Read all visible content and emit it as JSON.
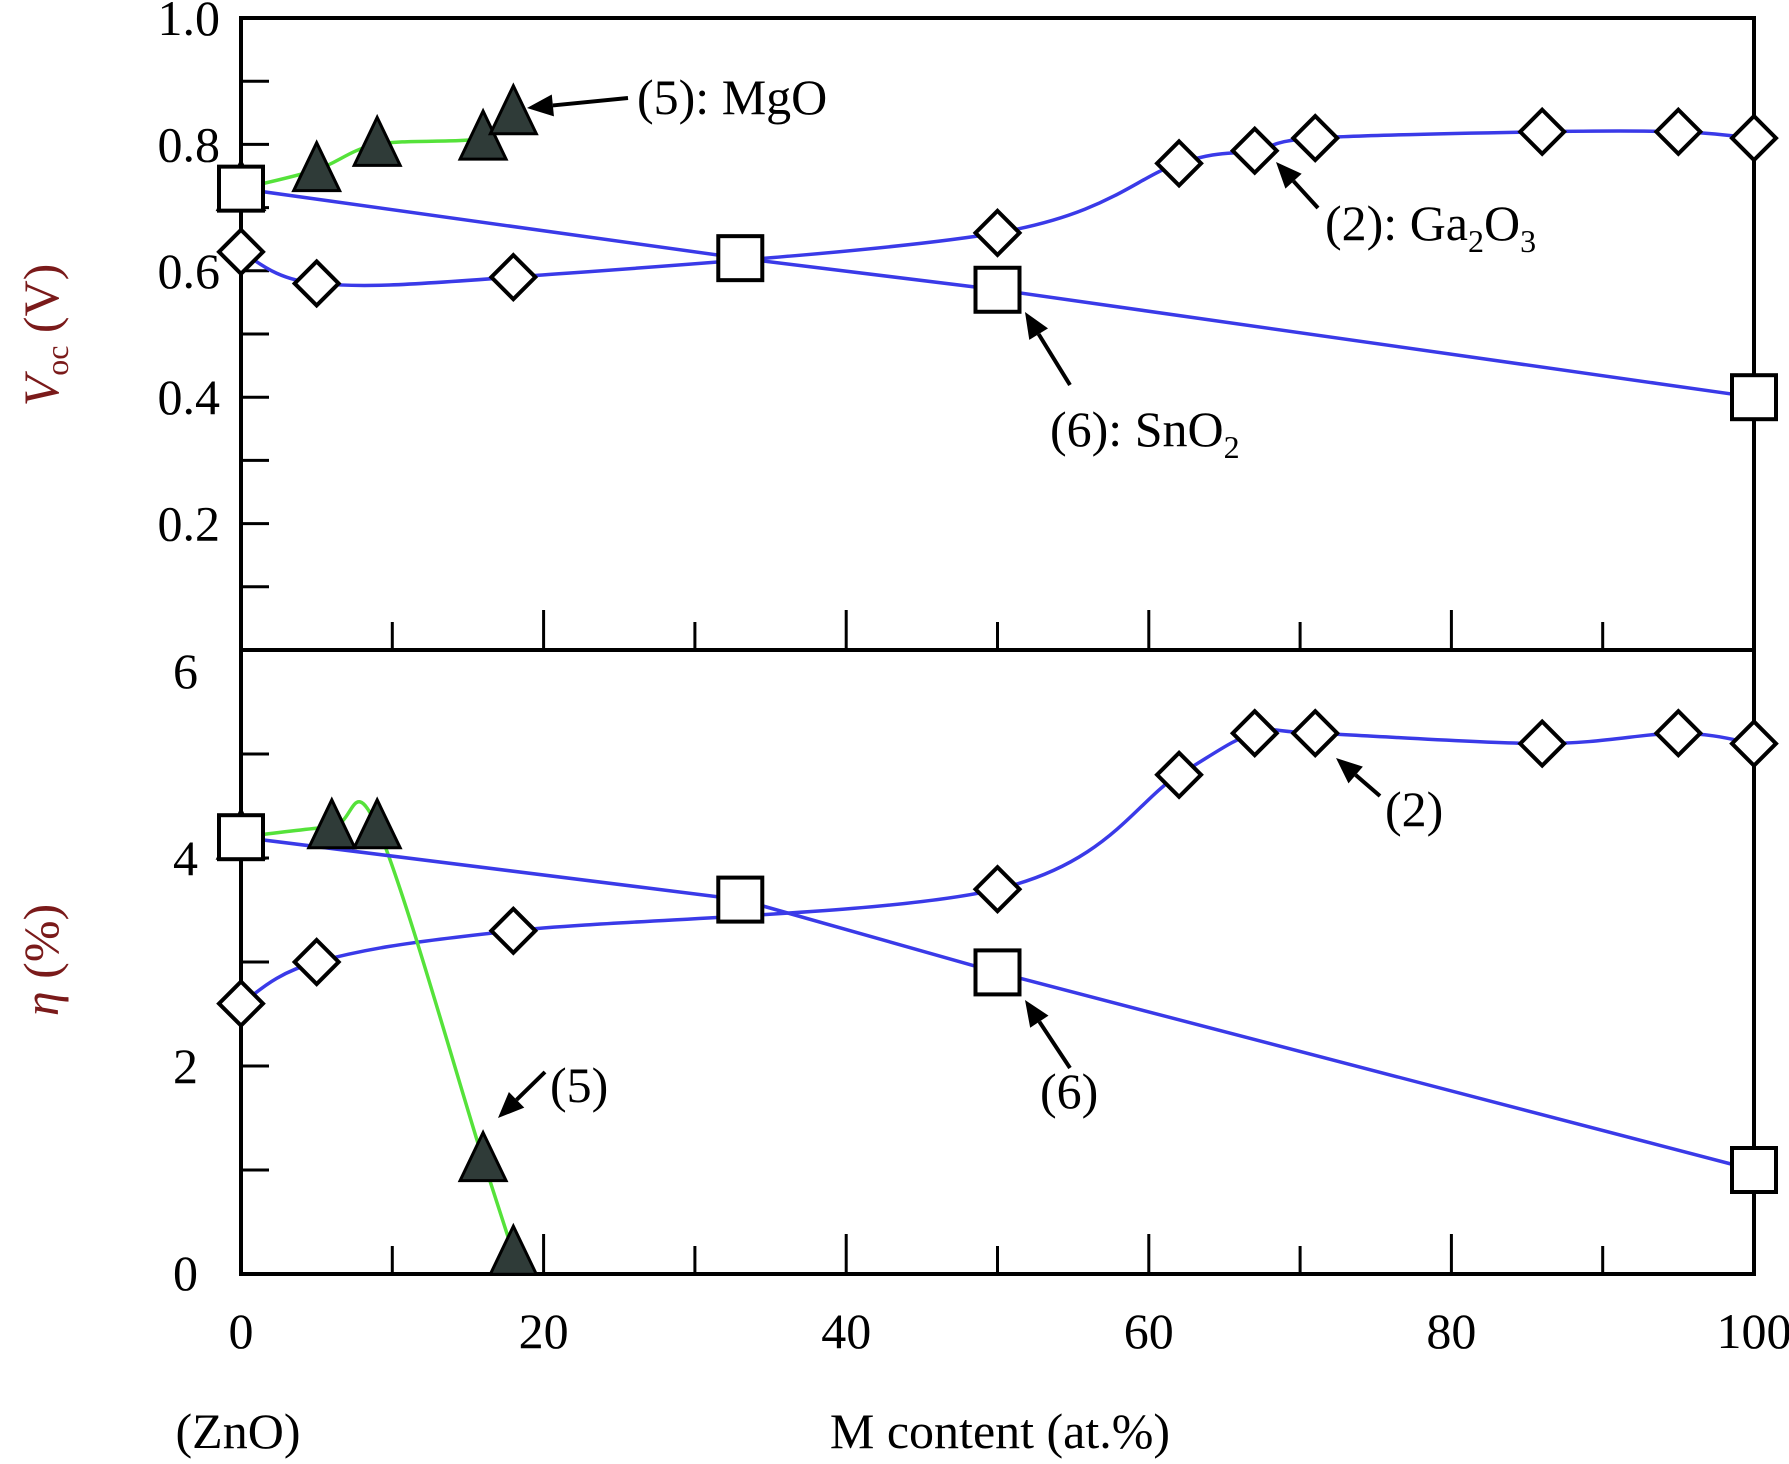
{
  "chart_data": [
    {
      "type": "line",
      "panel": "top",
      "ylabel": {
        "main": "V",
        "sub": "oc",
        "unit": " (V)"
      },
      "ylim": [
        0,
        1.0
      ],
      "y_ticks": [
        "0.2",
        "0.4",
        "0.6",
        "0.8",
        "1.0"
      ],
      "xlim": [
        0,
        100
      ],
      "grid": false,
      "series": [
        {
          "name": "(2): Ga2O3",
          "marker": "diamond",
          "line_color": "#3a3ae8",
          "x": [
            0,
            5,
            18,
            50,
            62,
            67,
            71,
            86,
            95,
            100
          ],
          "y": [
            0.63,
            0.58,
            0.59,
            0.66,
            0.77,
            0.79,
            0.81,
            0.82,
            0.82,
            0.81
          ]
        },
        {
          "name": "(5): MgO",
          "marker": "triangle",
          "line_color": "#55e23a",
          "x": [
            0,
            5,
            9,
            16,
            18
          ],
          "y": [
            0.73,
            0.76,
            0.8,
            0.81,
            0.85
          ]
        },
        {
          "name": "(6): SnO2",
          "marker": "square",
          "line_color": "#3a3ae8",
          "x": [
            0,
            33,
            50,
            100
          ],
          "y": [
            0.73,
            0.62,
            0.57,
            0.4
          ]
        }
      ],
      "annotations": [
        {
          "label": "(5): MgO"
        },
        {
          "label": "(2): Ga",
          "sub1": "2",
          "mid": "O",
          "sub2": "3"
        },
        {
          "label": "(6): SnO",
          "sub1": "2"
        }
      ]
    },
    {
      "type": "line",
      "panel": "bottom",
      "ylabel": {
        "main": "η",
        "unit": " (%)"
      },
      "ylim": [
        0,
        6
      ],
      "y_ticks": [
        "0",
        "2",
        "4",
        "6"
      ],
      "xlim": [
        0,
        100
      ],
      "x_ticks": [
        "0",
        "20",
        "40",
        "60",
        "80",
        "100"
      ],
      "xlabel": "M content (at.%)",
      "x_note": "(ZnO)",
      "grid": false,
      "series": [
        {
          "name": "(2)",
          "marker": "diamond",
          "line_color": "#3a3ae8",
          "x": [
            0,
            5,
            18,
            50,
            62,
            67,
            71,
            86,
            95,
            100
          ],
          "y": [
            2.6,
            3.0,
            3.3,
            3.7,
            4.8,
            5.2,
            5.2,
            5.1,
            5.2,
            5.1
          ]
        },
        {
          "name": "(5)",
          "marker": "triangle",
          "line_color": "#55e23a",
          "x": [
            0,
            6,
            9,
            16,
            18
          ],
          "y": [
            4.2,
            4.3,
            4.3,
            1.1,
            0.2
          ]
        },
        {
          "name": "(6)",
          "marker": "square",
          "line_color": "#3a3ae8",
          "x": [
            0,
            33,
            50,
            100
          ],
          "y": [
            4.2,
            3.6,
            2.9,
            1.0
          ]
        }
      ],
      "annotations": [
        {
          "label": "(2)"
        },
        {
          "label": "(6)"
        },
        {
          "label": "(5)"
        }
      ]
    }
  ],
  "colors": {
    "blue_line": "#3a3ae8",
    "green_line": "#55e23a",
    "triangle_fill": "#2f3b38",
    "ylabel_color": "#7a1a1a"
  }
}
